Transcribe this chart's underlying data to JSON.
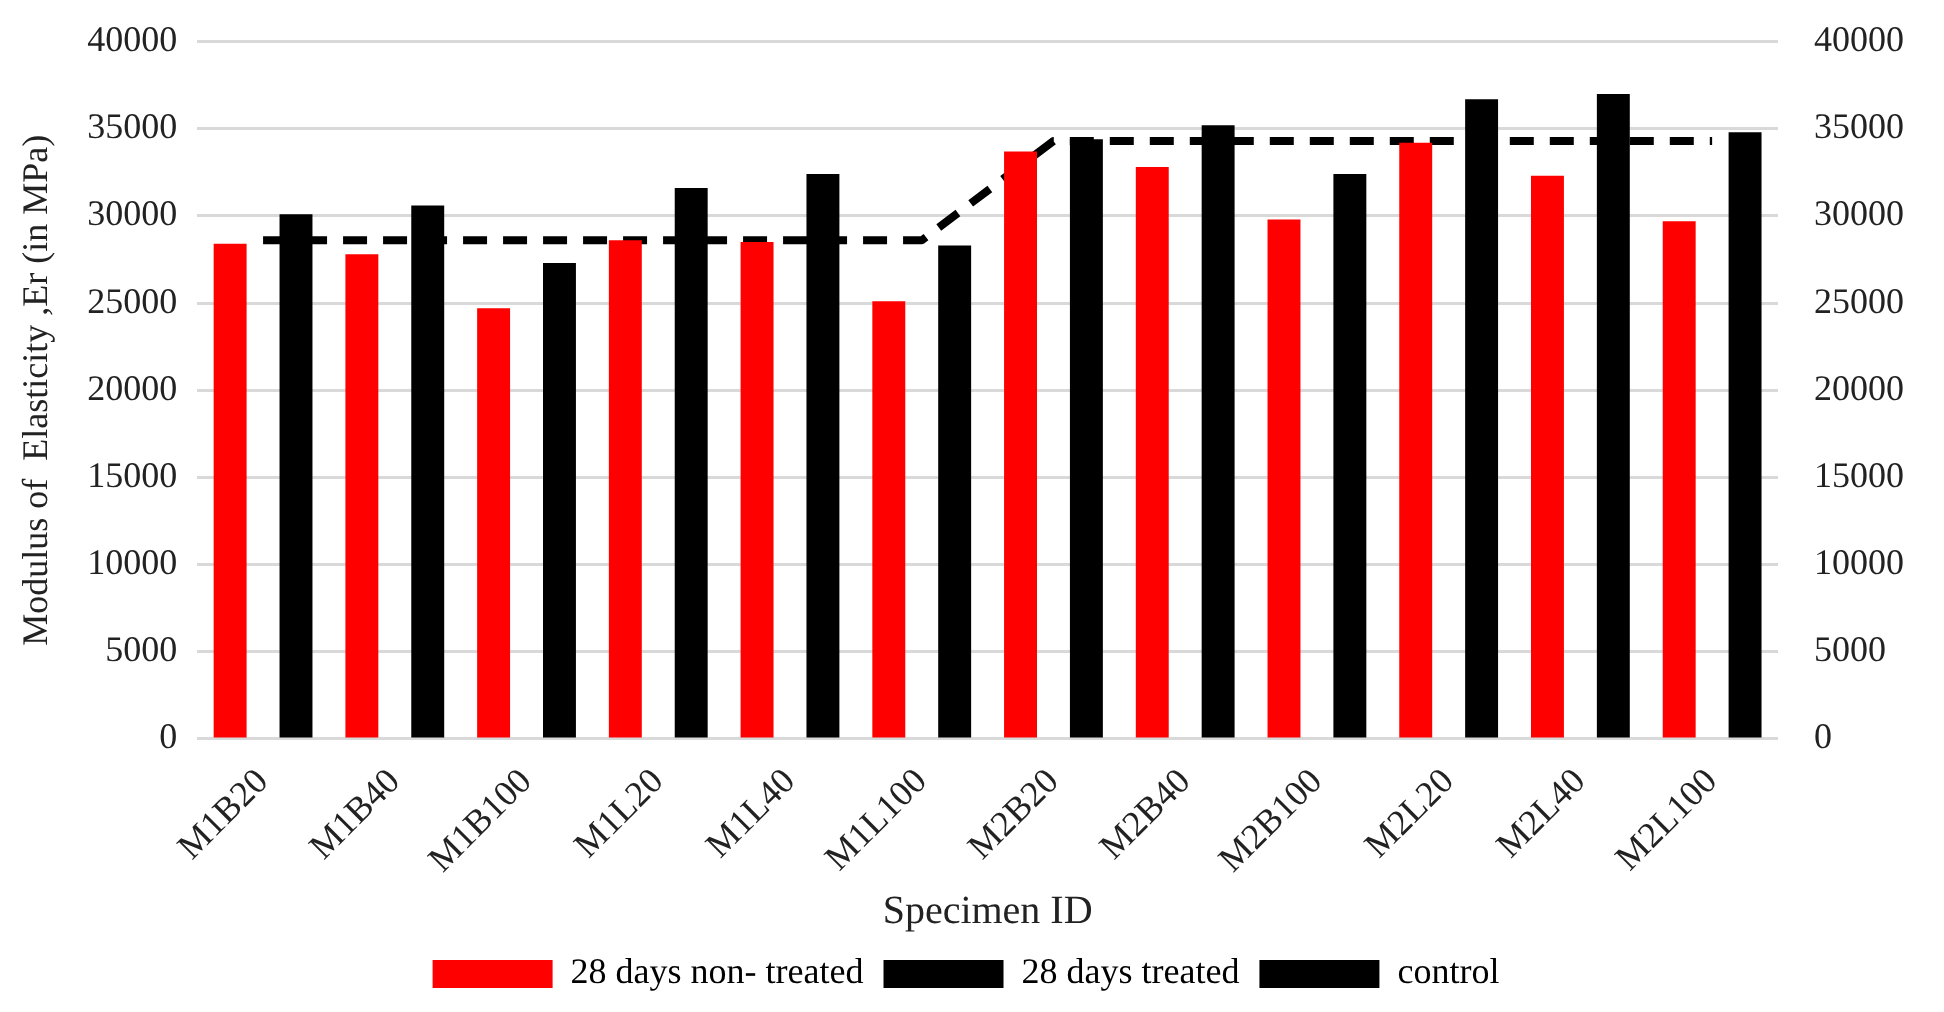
{
  "chart_data": {
    "type": "bar",
    "xlabel": "Specimen ID",
    "ylabel": "Modulus of  Elasticity ,Er (in MPa)",
    "categories": [
      "M1B20",
      "M1B40",
      "M1B100",
      "M1L20",
      "M1L40",
      "M1L100",
      "M2B20",
      "M2B40",
      "M2B100",
      "M2L20",
      "M2L40",
      "M2L100"
    ],
    "series": [
      {
        "name": "28 days non- treated",
        "color": "#ff0000",
        "values": [
          28400,
          27800,
          24700,
          28600,
          28500,
          25100,
          33700,
          32800,
          29800,
          34200,
          32300,
          29700
        ]
      },
      {
        "name": "28 days treated",
        "color": "#000000",
        "values": [
          30100,
          30600,
          27300,
          31600,
          32400,
          28300,
          34400,
          35200,
          32400,
          36700,
          37000,
          34800
        ]
      },
      {
        "name": "control",
        "type": "line",
        "color": "#000000",
        "line_style": "dashed",
        "marker": "none",
        "values": [
          28600,
          28600,
          28600,
          28600,
          28600,
          28600,
          34300,
          34300,
          34300,
          34300,
          34300,
          34300
        ]
      }
    ],
    "ylim": [
      0,
      40000
    ],
    "yticks": [
      0,
      5000,
      10000,
      15000,
      20000,
      25000,
      30000,
      35000,
      40000
    ],
    "y2lim": [
      0,
      40000
    ],
    "y2ticks": [
      0,
      5000,
      10000,
      15000,
      20000,
      25000,
      30000,
      35000,
      40000
    ],
    "grid": "y",
    "legend": "bottom"
  }
}
